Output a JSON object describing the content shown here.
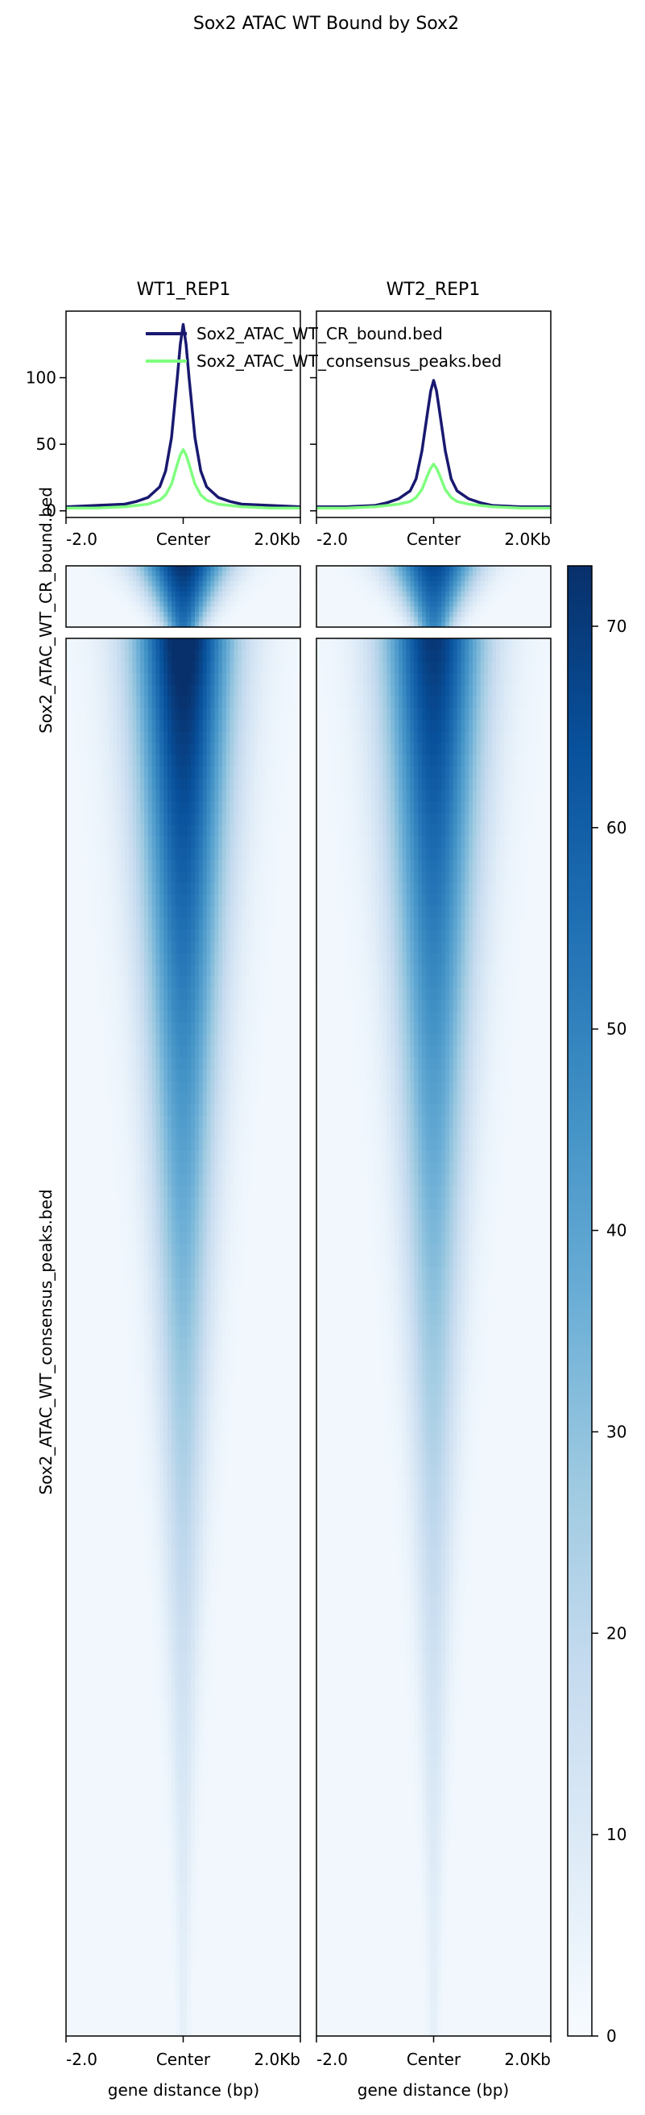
{
  "title": "Sox2 ATAC WT Bound by Sox2",
  "samples": [
    "WT1_REP1",
    "WT2_REP1"
  ],
  "regions": [
    "Sox2_ATAC_WT_CR_bound.bed",
    "Sox2_ATAC_WT_consensus_peaks.bed"
  ],
  "colors": {
    "cr_bound": "#191970",
    "consensus": "#7fff7f",
    "cmap": [
      "#f7fbff",
      "#deebf7",
      "#c6dbef",
      "#9ecae1",
      "#6baed6",
      "#4292c6",
      "#2171b5",
      "#08519c",
      "#08306b"
    ]
  },
  "xlabel": "gene distance (bp)",
  "xtick_labels": [
    "-2.0",
    "Center",
    "2.0Kb"
  ],
  "profile_yticks": [
    0,
    50,
    100
  ],
  "profile_ylim": [
    -5,
    150
  ],
  "colorbar": {
    "vmin": 0,
    "vmax": 73,
    "ticks": [
      0,
      10,
      20,
      30,
      40,
      50,
      60,
      70
    ]
  },
  "chart_data": {
    "type": "line",
    "title": "Sox2 ATAC WT Bound by Sox2",
    "x_range_bp": [
      -2000,
      2000
    ],
    "x": [
      -2000,
      -1500,
      -1000,
      -800,
      -600,
      -400,
      -300,
      -200,
      -100,
      -50,
      0,
      50,
      100,
      200,
      300,
      400,
      600,
      800,
      1000,
      1500,
      2000
    ],
    "series": [
      {
        "name": "Sox2_ATAC_WT_CR_bound.bed",
        "sample": "WT1_REP1",
        "values": [
          3,
          4,
          5,
          7,
          10,
          18,
          30,
          55,
          100,
          125,
          140,
          125,
          100,
          55,
          30,
          18,
          10,
          7,
          5,
          4,
          3
        ]
      },
      {
        "name": "Sox2_ATAC_WT_consensus_peaks.bed",
        "sample": "WT1_REP1",
        "values": [
          2,
          2,
          3,
          4,
          5,
          8,
          12,
          20,
          35,
          42,
          46,
          42,
          35,
          20,
          12,
          8,
          5,
          4,
          3,
          2,
          2
        ]
      },
      {
        "name": "Sox2_ATAC_WT_CR_bound.bed",
        "sample": "WT2_REP1",
        "values": [
          3,
          3,
          4,
          6,
          9,
          15,
          24,
          45,
          75,
          90,
          98,
          90,
          75,
          45,
          24,
          15,
          9,
          6,
          4,
          3,
          3
        ]
      },
      {
        "name": "Sox2_ATAC_WT_consensus_peaks.bed",
        "sample": "WT2_REP1",
        "values": [
          2,
          2,
          3,
          4,
          5,
          7,
          10,
          16,
          27,
          32,
          35,
          32,
          27,
          16,
          10,
          7,
          5,
          4,
          3,
          2,
          2
        ]
      }
    ],
    "heatmap": {
      "type": "heatmap",
      "colormap": "Blues",
      "value_range": [
        0,
        73
      ],
      "peak_intensity": {
        "WT1_REP1": 70,
        "WT2_REP1": 64
      }
    }
  }
}
